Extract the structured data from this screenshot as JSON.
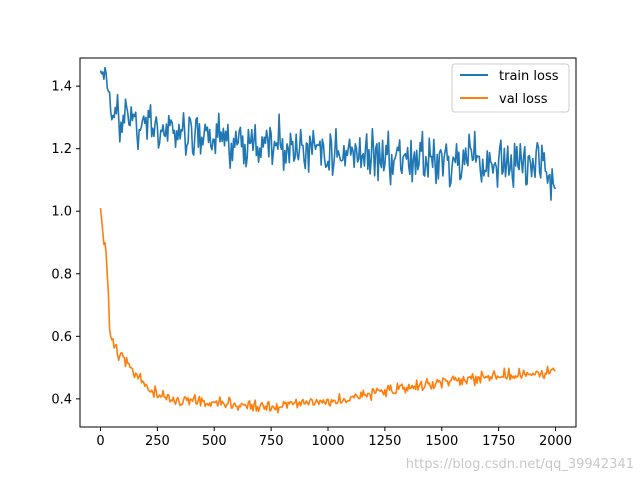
{
  "chart_data": {
    "type": "line",
    "title": "",
    "xlabel": "",
    "ylabel": "",
    "xlim": [
      -90,
      2090
    ],
    "ylim": [
      0.31,
      1.49
    ],
    "x_ticks": [
      0,
      250,
      500,
      750,
      1000,
      1250,
      1500,
      1750,
      2000
    ],
    "y_ticks": [
      0.4,
      0.6,
      0.8,
      1.0,
      1.2,
      1.4
    ],
    "y_tick_labels": [
      "0.4",
      "0.6",
      "0.8",
      "1.0",
      "1.2",
      "1.4"
    ],
    "grid": false,
    "legend_position": "top-right",
    "series": [
      {
        "name": "train loss",
        "color": "#1f77b4",
        "x": [
          0,
          25,
          50,
          75,
          100,
          150,
          200,
          250,
          300,
          400,
          500,
          600,
          700,
          800,
          900,
          1000,
          1100,
          1200,
          1300,
          1400,
          1500,
          1600,
          1700,
          1800,
          1900,
          1950,
          2000
        ],
        "y": [
          1.45,
          1.39,
          1.33,
          1.31,
          1.29,
          1.28,
          1.27,
          1.26,
          1.25,
          1.24,
          1.23,
          1.22,
          1.21,
          1.21,
          1.2,
          1.19,
          1.19,
          1.18,
          1.18,
          1.17,
          1.16,
          1.15,
          1.15,
          1.15,
          1.14,
          1.15,
          1.07
        ],
        "noise": 0.05
      },
      {
        "name": "val loss",
        "color": "#ff7f0e",
        "x": [
          0,
          10,
          20,
          30,
          40,
          60,
          80,
          100,
          150,
          200,
          250,
          300,
          350,
          400,
          500,
          600,
          700,
          750,
          800,
          900,
          1000,
          1100,
          1200,
          1300,
          1400,
          1500,
          1600,
          1700,
          1800,
          1900,
          2000
        ],
        "y": [
          1.01,
          0.94,
          0.9,
          0.78,
          0.63,
          0.57,
          0.54,
          0.53,
          0.48,
          0.44,
          0.41,
          0.4,
          0.395,
          0.39,
          0.385,
          0.38,
          0.375,
          0.37,
          0.38,
          0.385,
          0.39,
          0.4,
          0.42,
          0.43,
          0.44,
          0.45,
          0.46,
          0.47,
          0.48,
          0.48,
          0.49
        ],
        "noise": 0.012
      }
    ]
  },
  "watermark": "https://blog.csdn.net/qq_39942341"
}
